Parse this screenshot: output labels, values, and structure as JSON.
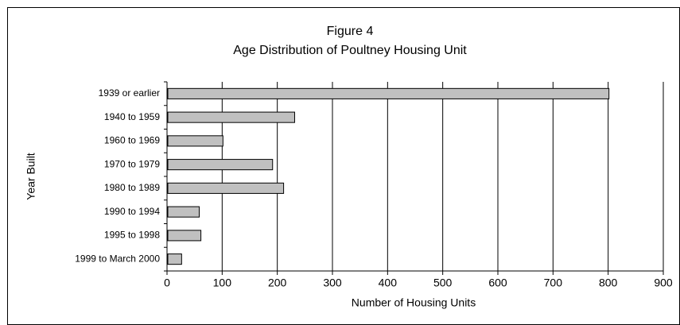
{
  "chart_data": {
    "type": "bar",
    "orientation": "horizontal",
    "title": "Figure 4",
    "subtitle": "Age Distribution of Poultney Housing Unit",
    "categories": [
      "1939 or earlier",
      "1940 to 1959",
      "1960 to 1969",
      "1970 to 1979",
      "1980 to 1989",
      "1990 to 1994",
      "1995 to 1998",
      "1999 to March 2000"
    ],
    "values": [
      800,
      230,
      100,
      190,
      210,
      57,
      60,
      25
    ],
    "color": "#c0c0c0",
    "xlim": [
      0,
      900
    ],
    "xticks": [
      0,
      100,
      200,
      300,
      400,
      500,
      600,
      700,
      800,
      900
    ],
    "xlabel": "Number of Housing Units",
    "ylabel": "Year Built",
    "grid": true
  }
}
